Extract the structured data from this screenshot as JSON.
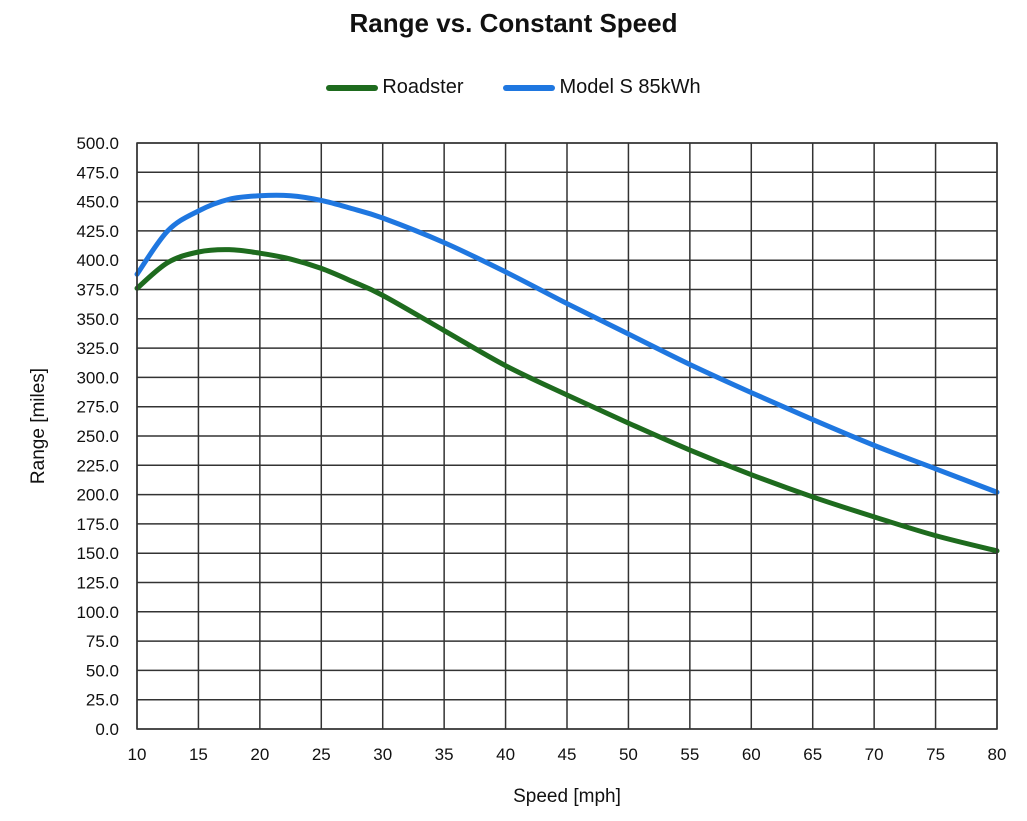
{
  "chart_data": {
    "type": "line",
    "title": "Range vs. Constant Speed",
    "xlabel": "Speed [mph]",
    "ylabel": "Range [miles]",
    "xlim": [
      10,
      80
    ],
    "ylim": [
      0,
      500
    ],
    "x_ticks": [
      "10",
      "15",
      "20",
      "25",
      "30",
      "35",
      "40",
      "45",
      "50",
      "55",
      "60",
      "65",
      "70",
      "75",
      "80"
    ],
    "y_ticks": [
      "0.0",
      "25.0",
      "50.0",
      "75.0",
      "100.0",
      "125.0",
      "150.0",
      "175.0",
      "200.0",
      "225.0",
      "250.0",
      "275.0",
      "300.0",
      "325.0",
      "350.0",
      "375.0",
      "400.0",
      "425.0",
      "450.0",
      "475.0",
      "500.0"
    ],
    "grid": true,
    "legend_position": "top-center",
    "x": [
      10,
      12.5,
      15,
      17.5,
      20,
      22.5,
      25,
      27.5,
      30,
      35,
      40,
      45,
      50,
      55,
      60,
      65,
      70,
      75,
      80
    ],
    "series": [
      {
        "name": "Roadster",
        "color": "#1e6b1e",
        "values": [
          376,
          398,
          407,
          409,
          406,
          401,
          393,
          382,
          370,
          340,
          310,
          285,
          261,
          238,
          217,
          198,
          181,
          165,
          152
        ]
      },
      {
        "name": "Model S 85kWh",
        "color": "#1f77e0",
        "values": [
          388,
          425,
          442,
          452,
          455,
          455,
          451,
          444,
          436,
          415,
          390,
          363,
          337,
          311,
          287,
          264,
          242,
          222,
          202
        ]
      }
    ]
  }
}
